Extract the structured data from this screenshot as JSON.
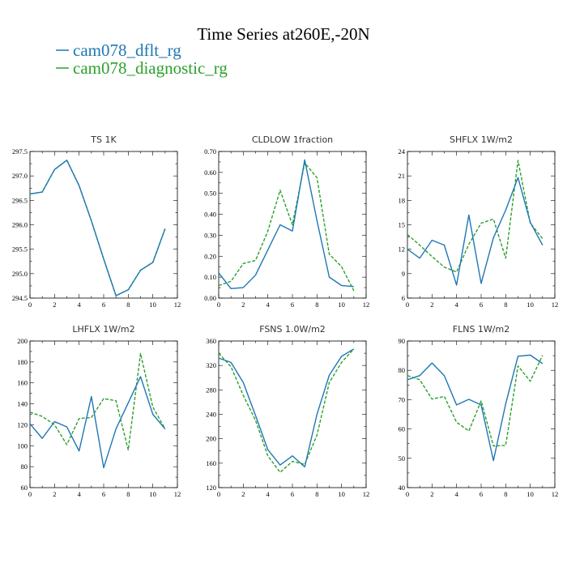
{
  "figure": {
    "title": "Time Series at260E,-20N"
  },
  "legend": [
    {
      "label": "cam078_dflt_rg",
      "color": "#1f77b4"
    },
    {
      "label": "cam078_diagnostic_rg",
      "color": "#2ca02c"
    }
  ],
  "chart_data": [
    {
      "type": "line",
      "title": "TS   1K",
      "x": [
        0,
        1,
        2,
        3,
        4,
        5,
        6,
        7,
        8,
        9,
        10,
        11
      ],
      "xlim": [
        0,
        12
      ],
      "xticks": [
        0,
        2,
        4,
        6,
        8,
        10,
        12
      ],
      "ylim": [
        294.5,
        297.5
      ],
      "yticks": [
        "294.5",
        "295.0",
        "295.5",
        "296.0",
        "296.5",
        "297.0",
        "297.5"
      ],
      "series": [
        {
          "name": "cam078_dflt_rg",
          "style": "solid",
          "values": [
            296.63,
            296.67,
            297.13,
            297.32,
            296.8,
            296.08,
            295.3,
            294.55,
            294.67,
            295.07,
            295.23,
            295.92
          ]
        },
        {
          "name": "cam078_diagnostic_rg",
          "style": "dashed",
          "values": [
            296.63,
            296.67,
            297.13,
            297.32,
            296.8,
            296.08,
            295.3,
            294.55,
            294.67,
            295.07,
            295.23,
            295.92
          ]
        }
      ]
    },
    {
      "type": "line",
      "title": "CLDLOW   1fraction",
      "x": [
        0,
        1,
        2,
        3,
        4,
        5,
        6,
        7,
        8,
        9,
        10,
        11
      ],
      "xlim": [
        0,
        12
      ],
      "xticks": [
        0,
        2,
        4,
        6,
        8,
        10,
        12
      ],
      "ylim": [
        0,
        0.7
      ],
      "yticks": [
        "0.00",
        "0.10",
        "0.20",
        "0.30",
        "0.40",
        "0.50",
        "0.60",
        "0.70"
      ],
      "series": [
        {
          "name": "cam078_dflt_rg",
          "style": "solid",
          "values": [
            0.12,
            0.045,
            0.05,
            0.11,
            0.23,
            0.35,
            0.32,
            0.66,
            0.37,
            0.1,
            0.06,
            0.055
          ]
        },
        {
          "name": "cam078_diagnostic_rg",
          "style": "dashed",
          "values": [
            0.06,
            0.08,
            0.165,
            0.18,
            0.32,
            0.515,
            0.35,
            0.645,
            0.575,
            0.21,
            0.15,
            0.035
          ]
        }
      ]
    },
    {
      "type": "line",
      "title": "SHFLX   1W/m2",
      "x": [
        0,
        1,
        2,
        3,
        4,
        5,
        6,
        7,
        8,
        9,
        10,
        11
      ],
      "xlim": [
        0,
        12
      ],
      "xticks": [
        0,
        2,
        4,
        6,
        8,
        10,
        12
      ],
      "ylim": [
        6,
        24
      ],
      "yticks": [
        "6",
        "9",
        "12",
        "15",
        "18",
        "21",
        "24"
      ],
      "series": [
        {
          "name": "cam078_dflt_rg",
          "style": "solid",
          "values": [
            12.0,
            10.9,
            13.1,
            12.5,
            7.6,
            16.2,
            7.8,
            13.4,
            16.8,
            20.8,
            15.3,
            12.5
          ]
        },
        {
          "name": "cam078_diagnostic_rg",
          "style": "dashed",
          "values": [
            13.8,
            12.5,
            11.1,
            9.8,
            9.2,
            12.6,
            15.2,
            15.7,
            10.9,
            22.9,
            15.2,
            13.3
          ]
        }
      ]
    },
    {
      "type": "line",
      "title": "LHFLX   1W/m2",
      "x": [
        0,
        1,
        2,
        3,
        4,
        5,
        6,
        7,
        8,
        9,
        10,
        11
      ],
      "xlim": [
        0,
        12
      ],
      "xticks": [
        0,
        2,
        4,
        6,
        8,
        10,
        12
      ],
      "ylim": [
        60,
        200
      ],
      "yticks": [
        "60",
        "80",
        "100",
        "120",
        "140",
        "160",
        "180",
        "200"
      ],
      "series": [
        {
          "name": "cam078_dflt_rg",
          "style": "solid",
          "values": [
            121,
            107,
            123,
            118,
            95,
            147,
            79,
            116,
            141,
            166,
            130,
            116
          ]
        },
        {
          "name": "cam078_diagnostic_rg",
          "style": "dashed",
          "values": [
            132,
            128,
            120,
            101,
            126,
            127,
            145,
            143,
            96,
            188,
            137,
            116
          ]
        }
      ]
    },
    {
      "type": "line",
      "title": "FSNS   1.0W/m2",
      "x": [
        0,
        1,
        2,
        3,
        4,
        5,
        6,
        7,
        8,
        9,
        10,
        11
      ],
      "xlim": [
        0,
        12
      ],
      "xticks": [
        0,
        2,
        4,
        6,
        8,
        10,
        12
      ],
      "ylim": [
        120,
        360
      ],
      "yticks": [
        "120",
        "160",
        "200",
        "240",
        "280",
        "320",
        "360"
      ],
      "series": [
        {
          "name": "cam078_dflt_rg",
          "style": "solid",
          "values": [
            332,
            325,
            292,
            238,
            182,
            157,
            172,
            154,
            240,
            304,
            335,
            347
          ]
        },
        {
          "name": "cam078_diagnostic_rg",
          "style": "dashed",
          "values": [
            340,
            318,
            271,
            230,
            172,
            145,
            163,
            158,
            206,
            292,
            325,
            347
          ]
        }
      ]
    },
    {
      "type": "line",
      "title": "FLNS   1W/m2",
      "x": [
        0,
        1,
        2,
        3,
        4,
        5,
        6,
        7,
        8,
        9,
        10,
        11
      ],
      "xlim": [
        0,
        12
      ],
      "xticks": [
        0,
        2,
        4,
        6,
        8,
        10,
        12
      ],
      "ylim": [
        40,
        90
      ],
      "yticks": [
        "40",
        "50",
        "60",
        "70",
        "80",
        "90"
      ],
      "series": [
        {
          "name": "cam078_dflt_rg",
          "style": "solid",
          "values": [
            76.8,
            78.2,
            82.5,
            78.2,
            68.2,
            70.1,
            68.2,
            49.2,
            68.6,
            84.8,
            85.2,
            82.3
          ]
        },
        {
          "name": "cam078_diagnostic_rg",
          "style": "dashed",
          "values": [
            78.2,
            76.8,
            70.2,
            71.1,
            62.3,
            59.3,
            69.6,
            54.2,
            54.4,
            81.5,
            76.3,
            85.1
          ]
        }
      ]
    }
  ]
}
